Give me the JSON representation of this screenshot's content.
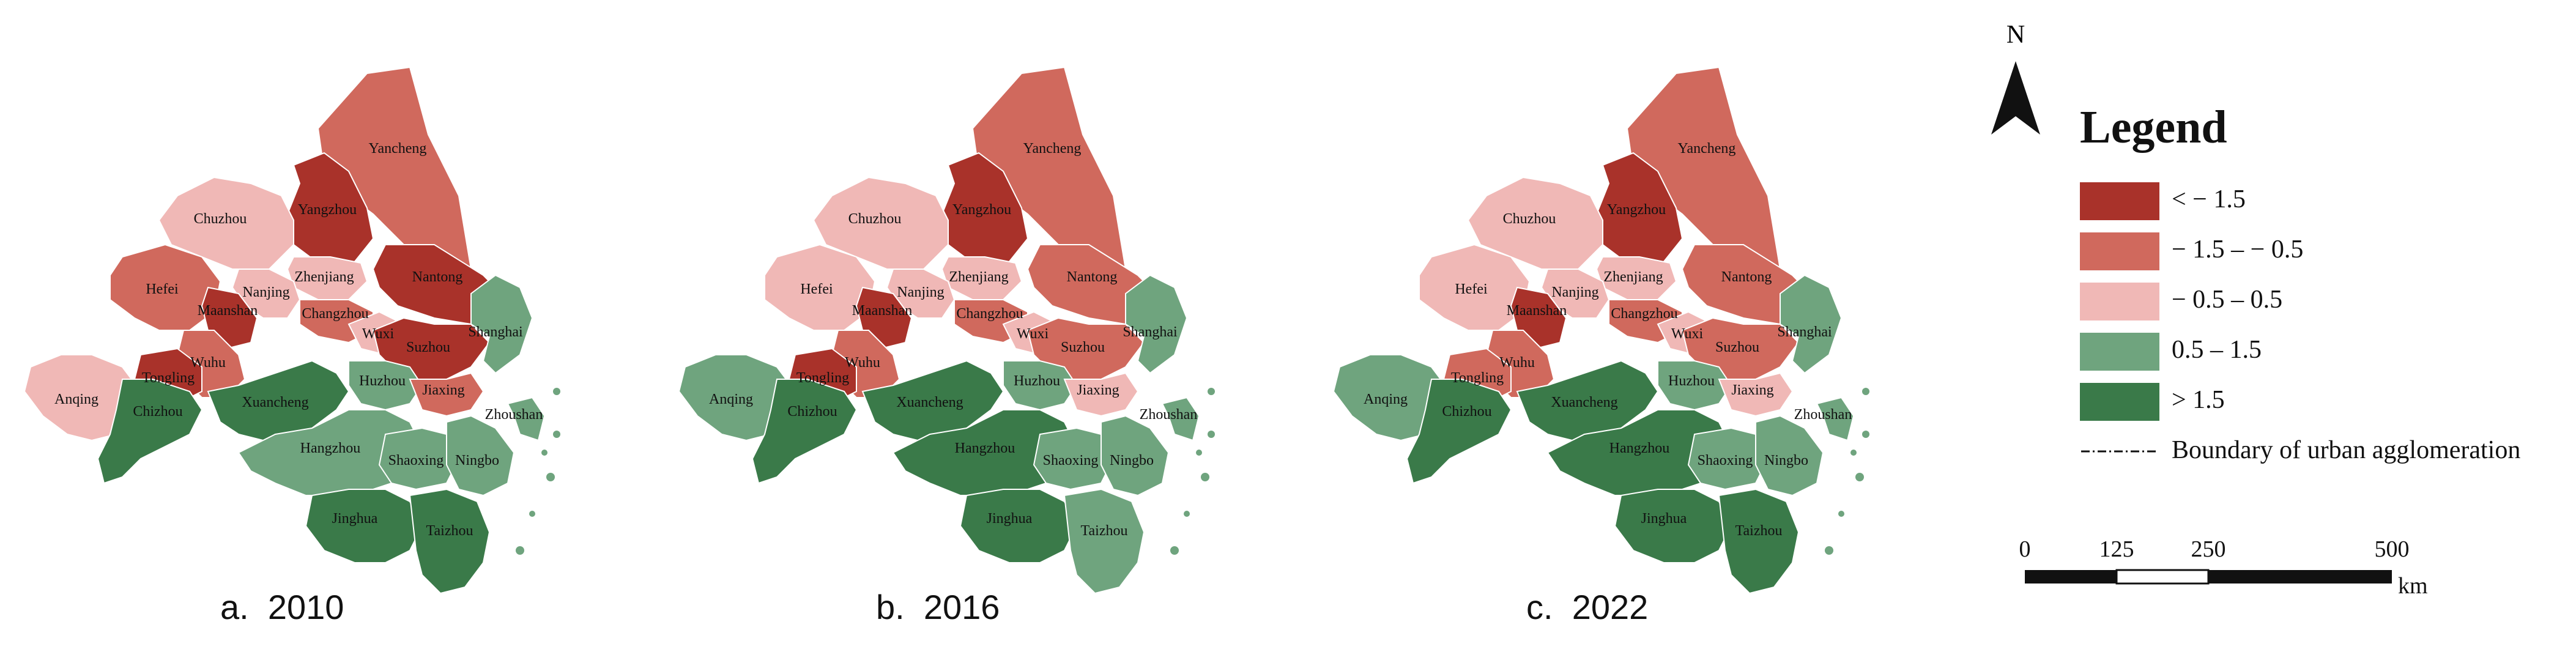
{
  "colors": {
    "lt_-1.5": "#a9322a",
    "-1.5_-0.5": "#d0695d",
    "-0.5_0.5": "#f0b8b6",
    "0.5_1.5": "#6fa47e",
    "gt_1.5": "#3a7a49"
  },
  "cities": [
    "Yancheng",
    "Yangzhou",
    "Chuzhou",
    "Nantong",
    "Zhenjiang",
    "Nanjing",
    "Hefei",
    "Maanshan",
    "Changzhou",
    "Wuxi",
    "Suzhou",
    "Shanghai",
    "Wuhu",
    "Tongling",
    "Xuancheng",
    "Huzhou",
    "Jiaxing",
    "Anqing",
    "Chizhou",
    "Hangzhou",
    "Shaoxing",
    "Ningbo",
    "Zhoushan",
    "Jinghua",
    "Taizhou"
  ],
  "panels": [
    {
      "caption_letter": "a.",
      "caption_year": "2010",
      "classes": {
        "Yancheng": "-1.5_-0.5",
        "Yangzhou": "lt_-1.5",
        "Chuzhou": "-0.5_0.5",
        "Nantong": "lt_-1.5",
        "Zhenjiang": "-0.5_0.5",
        "Nanjing": "-0.5_0.5",
        "Hefei": "-1.5_-0.5",
        "Maanshan": "lt_-1.5",
        "Changzhou": "-1.5_-0.5",
        "Wuxi": "-0.5_0.5",
        "Suzhou": "lt_-1.5",
        "Shanghai": "0.5_1.5",
        "Wuhu": "-1.5_-0.5",
        "Tongling": "lt_-1.5",
        "Xuancheng": "gt_1.5",
        "Huzhou": "0.5_1.5",
        "Jiaxing": "-1.5_-0.5",
        "Anqing": "-0.5_0.5",
        "Chizhou": "gt_1.5",
        "Hangzhou": "0.5_1.5",
        "Shaoxing": "0.5_1.5",
        "Ningbo": "0.5_1.5",
        "Zhoushan": "0.5_1.5",
        "Jinghua": "gt_1.5",
        "Taizhou": "gt_1.5"
      }
    },
    {
      "caption_letter": "b.",
      "caption_year": "2016",
      "classes": {
        "Yancheng": "-1.5_-0.5",
        "Yangzhou": "lt_-1.5",
        "Chuzhou": "-0.5_0.5",
        "Nantong": "-1.5_-0.5",
        "Zhenjiang": "-0.5_0.5",
        "Nanjing": "-0.5_0.5",
        "Hefei": "-0.5_0.5",
        "Maanshan": "lt_-1.5",
        "Changzhou": "-1.5_-0.5",
        "Wuxi": "-0.5_0.5",
        "Suzhou": "-1.5_-0.5",
        "Shanghai": "0.5_1.5",
        "Wuhu": "-1.5_-0.5",
        "Tongling": "lt_-1.5",
        "Xuancheng": "gt_1.5",
        "Huzhou": "0.5_1.5",
        "Jiaxing": "-0.5_0.5",
        "Anqing": "0.5_1.5",
        "Chizhou": "gt_1.5",
        "Hangzhou": "gt_1.5",
        "Shaoxing": "0.5_1.5",
        "Ningbo": "0.5_1.5",
        "Zhoushan": "0.5_1.5",
        "Jinghua": "gt_1.5",
        "Taizhou": "0.5_1.5"
      }
    },
    {
      "caption_letter": "c.",
      "caption_year": "2022",
      "classes": {
        "Yancheng": "-1.5_-0.5",
        "Yangzhou": "lt_-1.5",
        "Chuzhou": "-0.5_0.5",
        "Nantong": "-1.5_-0.5",
        "Zhenjiang": "-0.5_0.5",
        "Nanjing": "-0.5_0.5",
        "Hefei": "-0.5_0.5",
        "Maanshan": "lt_-1.5",
        "Changzhou": "-1.5_-0.5",
        "Wuxi": "-0.5_0.5",
        "Suzhou": "-1.5_-0.5",
        "Shanghai": "0.5_1.5",
        "Wuhu": "-1.5_-0.5",
        "Tongling": "-1.5_-0.5",
        "Xuancheng": "gt_1.5",
        "Huzhou": "0.5_1.5",
        "Jiaxing": "-0.5_0.5",
        "Anqing": "0.5_1.5",
        "Chizhou": "gt_1.5",
        "Hangzhou": "gt_1.5",
        "Shaoxing": "0.5_1.5",
        "Ningbo": "0.5_1.5",
        "Zhoushan": "0.5_1.5",
        "Jinghua": "gt_1.5",
        "Taizhou": "gt_1.5"
      }
    }
  ],
  "legend": {
    "north_label": "N",
    "title": "Legend",
    "items": [
      {
        "class": "lt_-1.5",
        "label": "< − 1.5"
      },
      {
        "class": "-1.5_-0.5",
        "label": "− 1.5 – − 0.5"
      },
      {
        "class": "-0.5_0.5",
        "label": "− 0.5 – 0.5"
      },
      {
        "class": "0.5_1.5",
        "label": "0.5 – 1.5"
      },
      {
        "class": "gt_1.5",
        "label": "> 1.5"
      }
    ],
    "boundary_label": "Boundary of urban agglomeration",
    "scale": {
      "ticks": [
        "0",
        "125",
        "250",
        "500"
      ],
      "unit": "km"
    }
  }
}
